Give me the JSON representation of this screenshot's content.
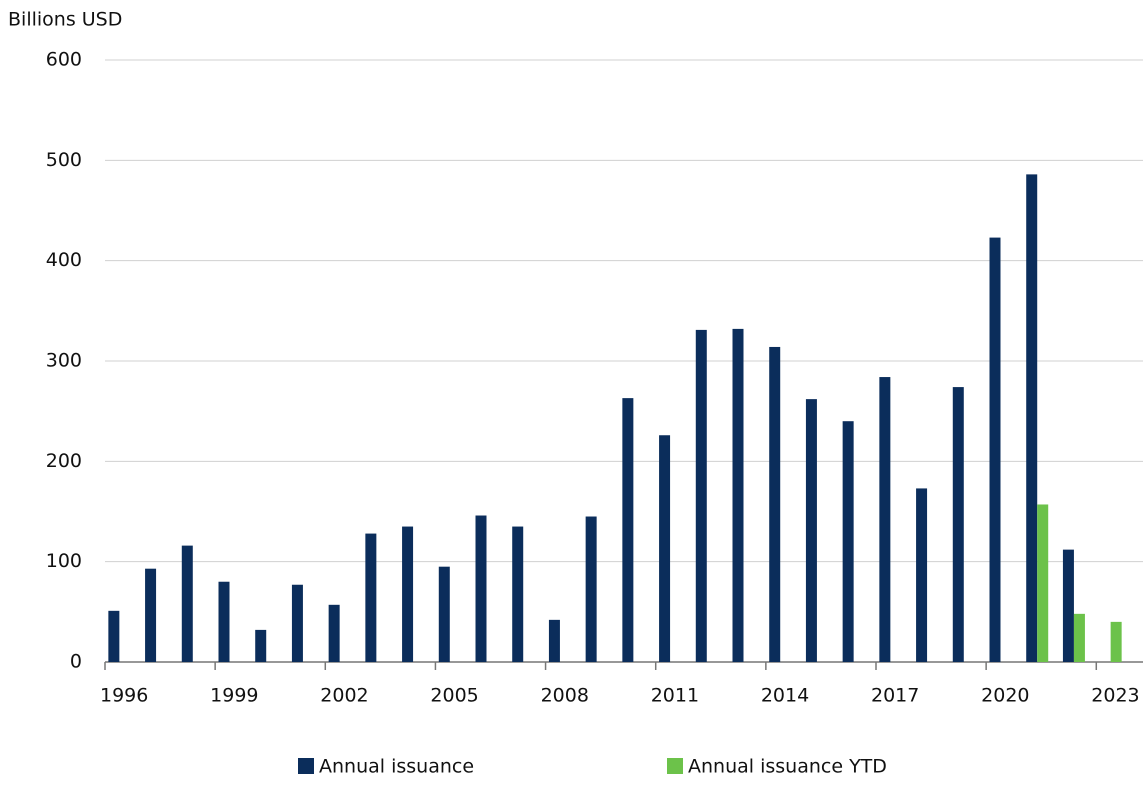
{
  "chart_data": {
    "type": "bar",
    "y_axis_label": "Billions USD",
    "categories": [
      "1996",
      null,
      null,
      "1999",
      null,
      null,
      "2002",
      null,
      null,
      "2005",
      null,
      null,
      "2008",
      null,
      null,
      "2011",
      null,
      null,
      "2014",
      null,
      null,
      "2017",
      null,
      null,
      "2020",
      null,
      null,
      "2023"
    ],
    "series": [
      {
        "name": "Annual issuance",
        "color": "#0b2d5b",
        "values": [
          51,
          93,
          116,
          80,
          32,
          77,
          57,
          128,
          135,
          95,
          146,
          135,
          42,
          145,
          263,
          226,
          331,
          332,
          314,
          262,
          240,
          284,
          173,
          274,
          423,
          486,
          112,
          null
        ]
      },
      {
        "name": "Annual issuance YTD",
        "color": "#6cc24a",
        "values": [
          null,
          null,
          null,
          null,
          null,
          null,
          null,
          null,
          null,
          null,
          null,
          null,
          null,
          null,
          null,
          null,
          null,
          null,
          null,
          null,
          null,
          null,
          null,
          null,
          null,
          157,
          48,
          40
        ]
      }
    ],
    "ylim": [
      0,
      600
    ],
    "yticks": [
      0,
      100,
      200,
      300,
      400,
      500,
      600
    ],
    "grid": true,
    "legend": "bottom"
  }
}
